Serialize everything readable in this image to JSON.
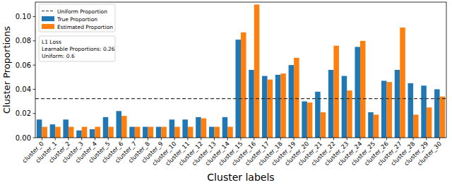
{
  "chart_data": {
    "type": "bar",
    "x_label": "Cluster labels",
    "y_label": "Cluster Proportions",
    "categories": [
      "cluster_0",
      "cluster_1",
      "cluster_2",
      "cluster_3",
      "cluster_4",
      "cluster_5",
      "cluster_6",
      "cluster_7",
      "cluster_8",
      "cluster_9",
      "cluster_10",
      "cluster_11",
      "cluster_12",
      "cluster_13",
      "cluster_14",
      "cluster_15",
      "cluster_16",
      "cluster_17",
      "cluster_18",
      "cluster_19",
      "cluster_20",
      "cluster_21",
      "cluster_22",
      "cluster_23",
      "cluster_24",
      "cluster_25",
      "cluster_26",
      "cluster_27",
      "cluster_28",
      "cluster_29",
      "cluster_30"
    ],
    "series": [
      {
        "name": "True Proportion",
        "color": "#1f77b4",
        "values": [
          0.015,
          0.011,
          0.015,
          0.006,
          0.007,
          0.017,
          0.022,
          0.009,
          0.009,
          0.009,
          0.015,
          0.015,
          0.017,
          0.009,
          0.017,
          0.081,
          0.056,
          0.051,
          0.052,
          0.06,
          0.03,
          0.038,
          0.056,
          0.051,
          0.075,
          0.021,
          0.047,
          0.056,
          0.045,
          0.043,
          0.04
        ]
      },
      {
        "name": "Estimated Proportion",
        "color": "#ff7f0e",
        "values": [
          0.009,
          0.009,
          0.009,
          0.009,
          0.009,
          0.009,
          0.018,
          0.009,
          0.009,
          0.009,
          0.009,
          0.009,
          0.016,
          0.009,
          0.009,
          0.087,
          0.11,
          0.048,
          0.053,
          0.066,
          0.029,
          0.021,
          0.076,
          0.039,
          0.08,
          0.019,
          0.046,
          0.091,
          0.019,
          0.025,
          0.034
        ]
      }
    ],
    "lines": [
      {
        "name": "Uniform Proportion",
        "value": 0.0323,
        "color": "#333333",
        "line_style": "dashed"
      }
    ],
    "annotation": [
      "L1 Loss",
      "Learnable Proportions: 0.26",
      "Uniform: 0.6"
    ],
    "ylim": [
      0,
      0.112
    ],
    "yticks": [
      {
        "value": 0,
        "label": "0.00"
      },
      0.02,
      0.04,
      0.06,
      0.08,
      {
        "value": 0.1,
        "label": "0.10"
      }
    ],
    "legend": "upper left",
    "grid": false
  }
}
